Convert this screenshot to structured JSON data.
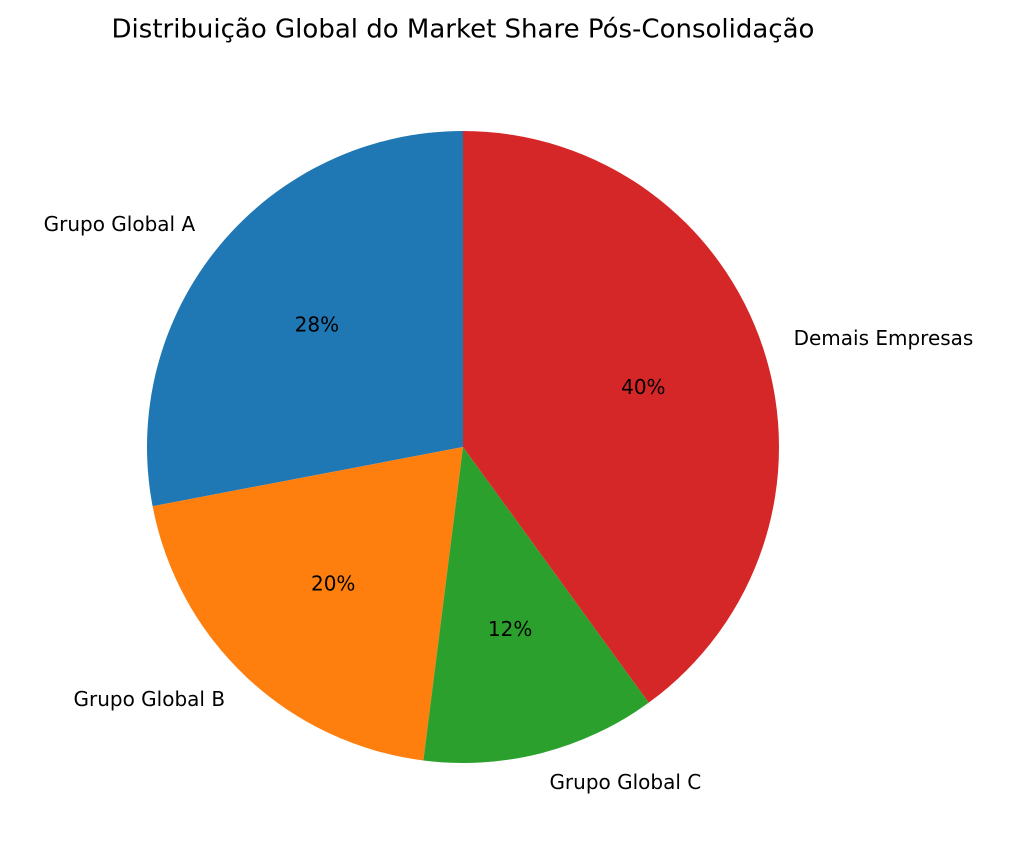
{
  "chart_data": {
    "type": "pie",
    "title": "Distribuição Global do Market Share Pós-Consolidação",
    "categories": [
      "Grupo Global A",
      "Grupo Global B",
      "Grupo Global C",
      "Demais Empresas"
    ],
    "values": [
      28,
      20,
      12,
      40
    ],
    "value_labels": [
      "28%",
      "20%",
      "12%",
      "40%"
    ],
    "colors": [
      "#1f77b4",
      "#ff7f0e",
      "#2ca02c",
      "#d62728"
    ]
  }
}
